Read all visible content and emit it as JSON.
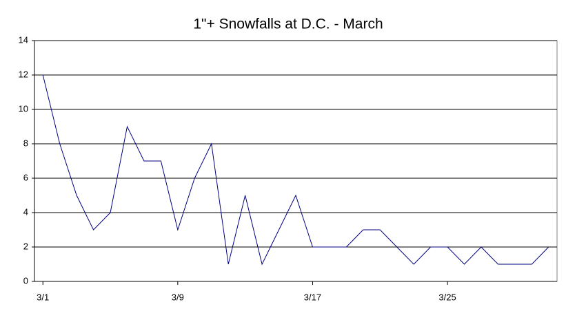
{
  "chart_data": {
    "type": "line",
    "title": "1\"+ Snowfalls at D.C. - March",
    "categories": [
      "3/1",
      null,
      null,
      null,
      null,
      null,
      null,
      null,
      "3/9",
      null,
      null,
      null,
      null,
      null,
      null,
      null,
      "3/17",
      null,
      null,
      null,
      null,
      null,
      null,
      null,
      "3/25",
      null,
      null,
      null,
      null,
      null,
      null
    ],
    "series": [
      {
        "name": "Snowfalls",
        "color": "#000080",
        "values": [
          12,
          8,
          5,
          3,
          4,
          9,
          7,
          7,
          3,
          6,
          8,
          1,
          5,
          1,
          3,
          5,
          2,
          2,
          2,
          3,
          3,
          2,
          1,
          2,
          2,
          1,
          2,
          1,
          1,
          1,
          2
        ]
      }
    ],
    "ylim": [
      0,
      14
    ],
    "yticks": [
      0,
      2,
      4,
      6,
      8,
      10,
      12,
      14
    ],
    "grid": true
  }
}
